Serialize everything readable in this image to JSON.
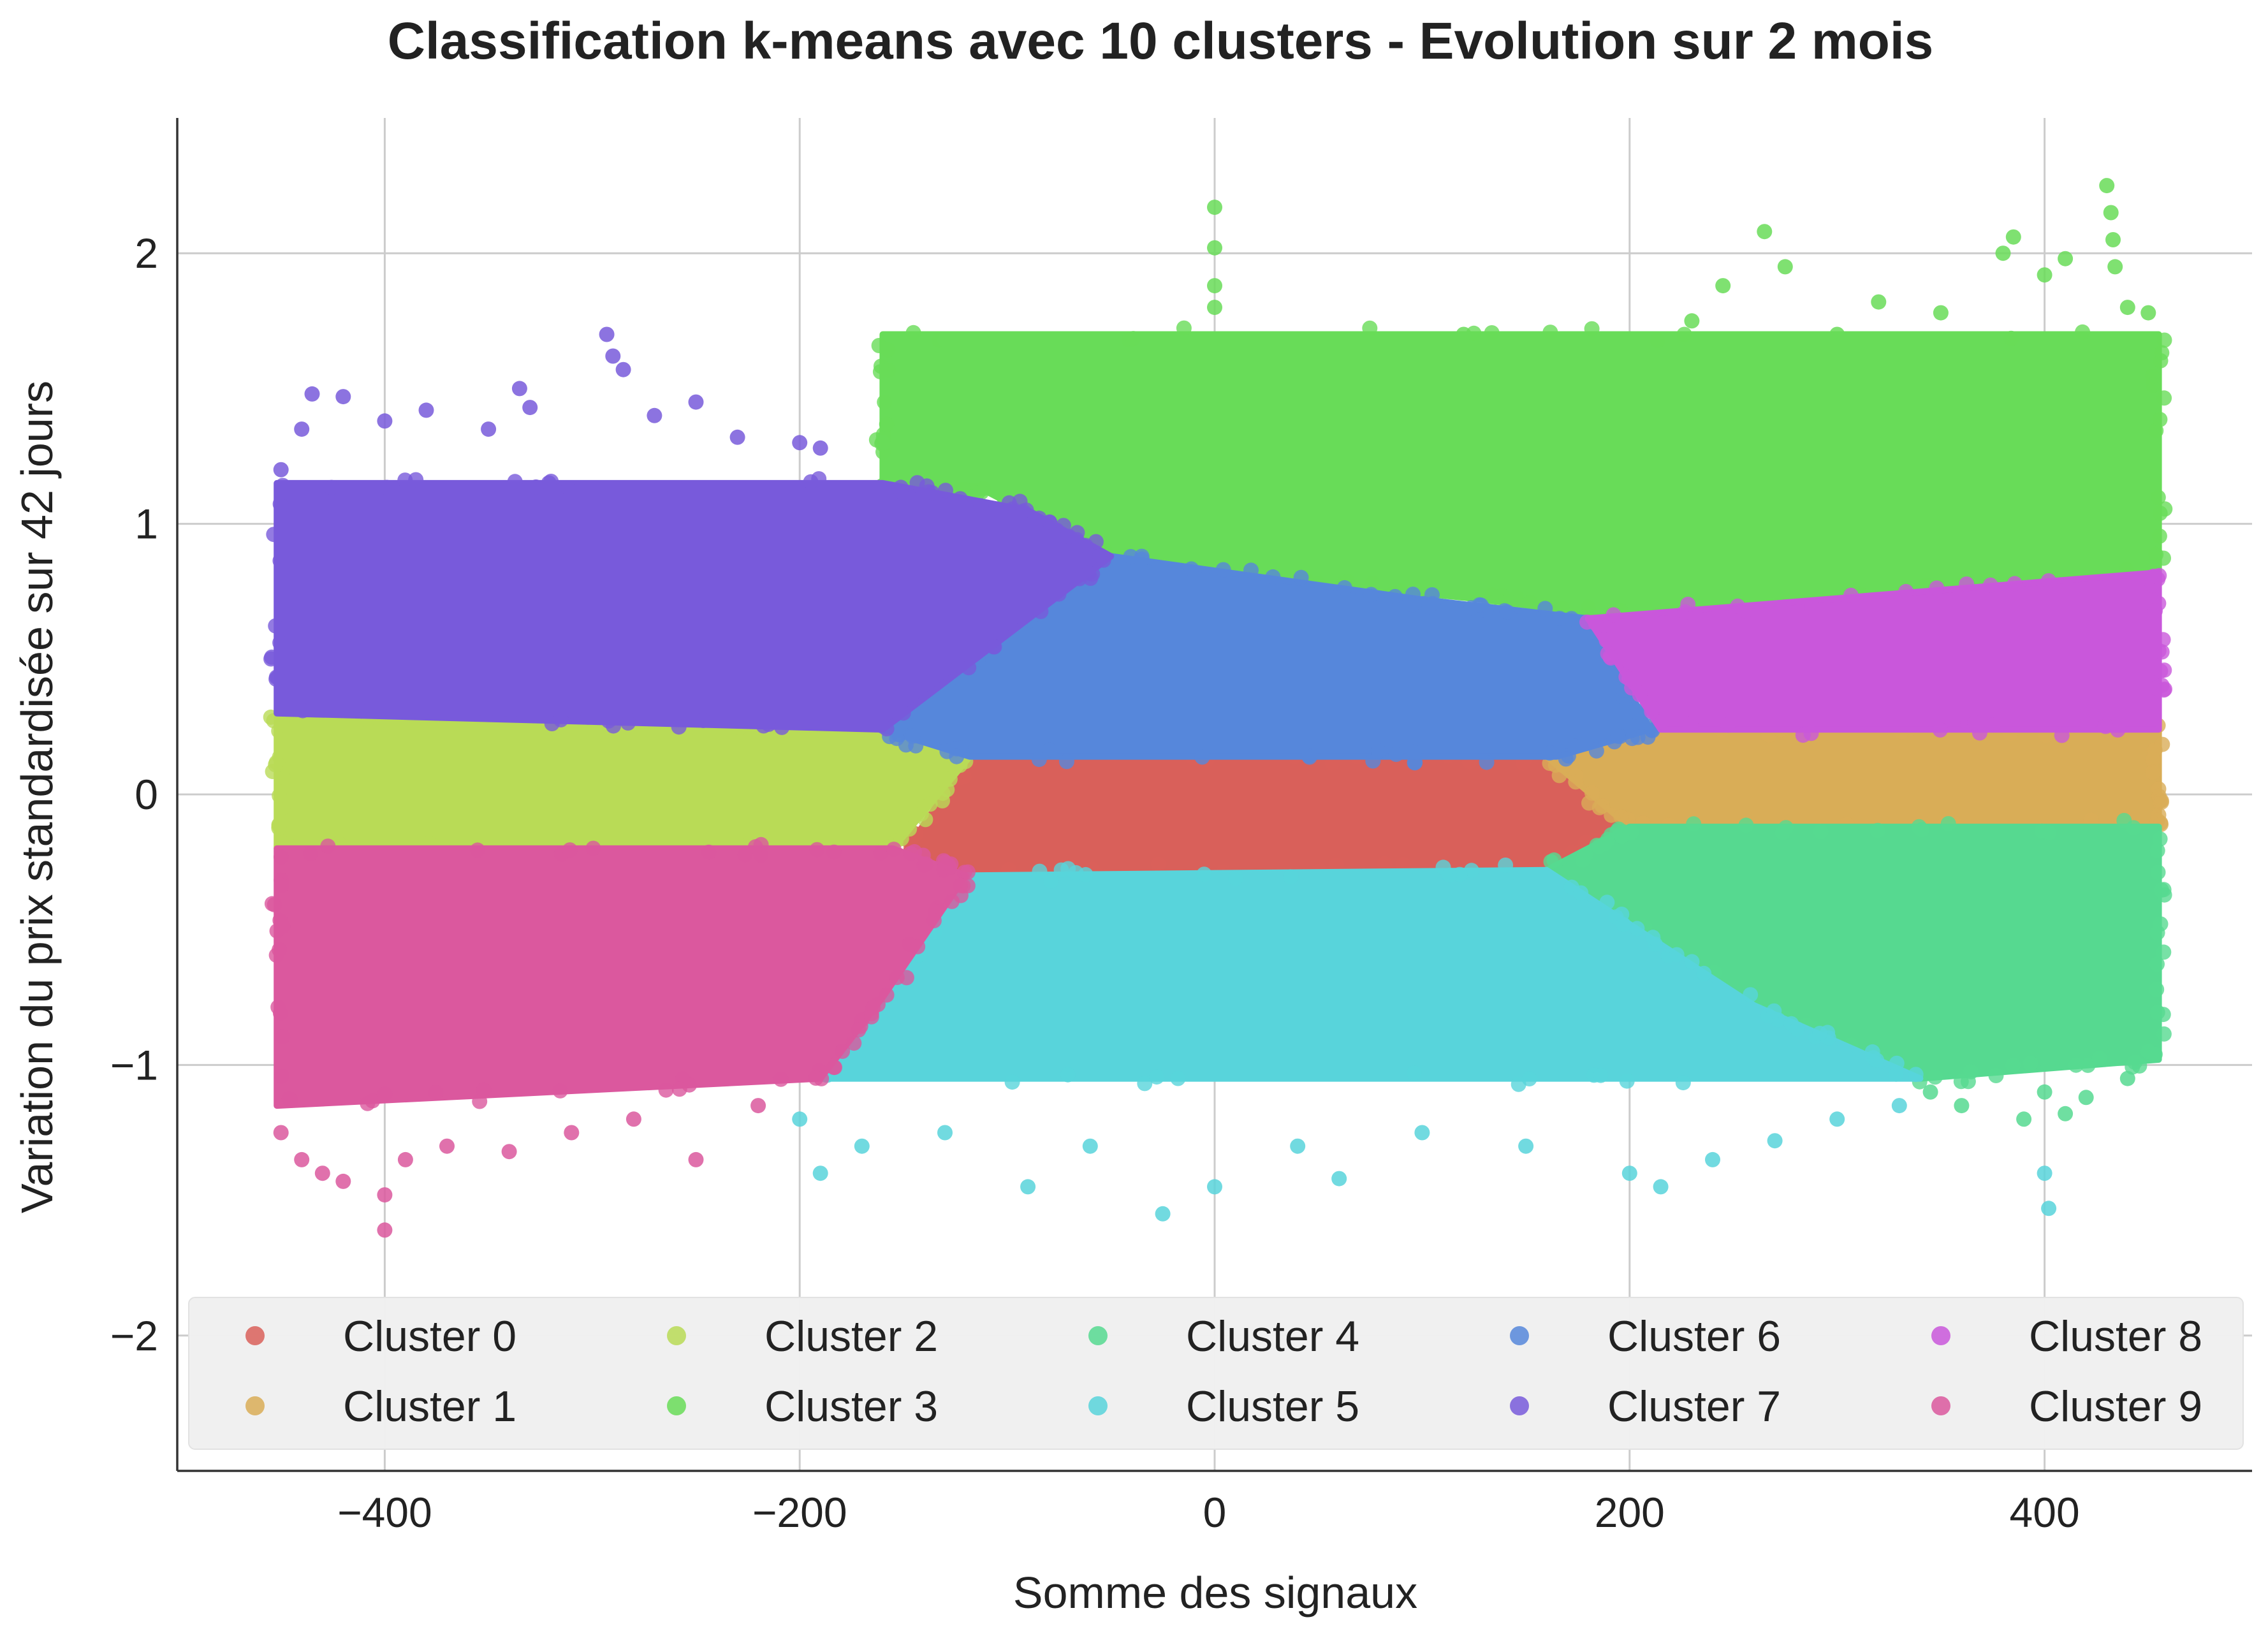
{
  "chart_data": {
    "type": "scatter",
    "title": "Classification k-means avec 10 clusters - Evolution sur 2 mois",
    "xlabel": "Somme des signaux",
    "ylabel": "Variation du prix standardisée sur 42 jours",
    "xlim": [
      -500,
      500
    ],
    "ylim": [
      -2.5,
      2.5
    ],
    "xticks": [
      -400,
      -200,
      0,
      200,
      400
    ],
    "xtick_labels": [
      "−400",
      "−200",
      "0",
      "200",
      "400"
    ],
    "yticks": [
      -2,
      -1,
      0,
      1,
      2
    ],
    "ytick_labels": [
      "−2",
      "−1",
      "0",
      "1",
      "2"
    ],
    "grid": true,
    "legend_position": "bottom",
    "legend_columns": 5,
    "series": [
      {
        "name": "Cluster 0",
        "color": "#d9605a",
        "region": [
          [
            -155,
            -0.28
          ],
          [
            -118,
            0.14
          ],
          [
            165,
            0.14
          ],
          [
            200,
            -0.12
          ],
          [
            160,
            -0.28
          ]
        ]
      },
      {
        "name": "Cluster 1",
        "color": "#d9ad57",
        "region": [
          [
            160,
            0.14
          ],
          [
            215,
            0.24
          ],
          [
            455,
            0.24
          ],
          [
            455,
            -0.12
          ],
          [
            200,
            -0.12
          ]
        ]
      },
      {
        "name": "Cluster 2",
        "color": "#b9db56",
        "region": [
          [
            -452,
            0.3
          ],
          [
            -160,
            0.24
          ],
          [
            -118,
            0.14
          ],
          [
            -155,
            -0.2
          ],
          [
            -452,
            -0.2
          ]
        ]
      },
      {
        "name": "Cluster 3",
        "color": "#68dc58",
        "region": [
          [
            -160,
            1.05
          ],
          [
            -110,
            1.12
          ],
          [
            -60,
            0.92
          ],
          [
            -30,
            0.84
          ],
          [
            130,
            0.72
          ],
          [
            190,
            0.66
          ],
          [
            455,
            0.82
          ],
          [
            455,
            1.7
          ],
          [
            -160,
            1.7
          ]
        ],
        "outliers": [
          [
            -160,
            1.3
          ],
          [
            -140,
            1.5
          ],
          [
            -130,
            1.68
          ],
          [
            -100,
            1.42
          ],
          [
            -70,
            1.5
          ],
          [
            -40,
            1.45
          ],
          [
            0,
            2.17
          ],
          [
            0,
            2.02
          ],
          [
            0,
            1.88
          ],
          [
            0,
            1.8
          ],
          [
            -20,
            1.62
          ],
          [
            60,
            1.5
          ],
          [
            100,
            1.6
          ],
          [
            120,
            1.7
          ],
          [
            150,
            1.62
          ],
          [
            190,
            1.55
          ],
          [
            230,
            1.75
          ],
          [
            245,
            1.88
          ],
          [
            265,
            2.08
          ],
          [
            275,
            1.95
          ],
          [
            300,
            1.7
          ],
          [
            320,
            1.82
          ],
          [
            350,
            1.78
          ],
          [
            380,
            2.0
          ],
          [
            385,
            2.06
          ],
          [
            400,
            1.92
          ],
          [
            410,
            1.98
          ],
          [
            430,
            2.25
          ],
          [
            432,
            2.15
          ],
          [
            433,
            2.05
          ],
          [
            434,
            1.95
          ],
          [
            440,
            1.8
          ],
          [
            450,
            1.78
          ]
        ]
      },
      {
        "name": "Cluster 4",
        "color": "#56d990",
        "region": [
          [
            160,
            -0.28
          ],
          [
            200,
            -0.12
          ],
          [
            455,
            -0.12
          ],
          [
            455,
            -0.98
          ],
          [
            340,
            -1.05
          ],
          [
            260,
            -0.78
          ]
        ],
        "outliers": [
          [
            345,
            -1.1
          ],
          [
            360,
            -1.15
          ],
          [
            390,
            -1.2
          ],
          [
            400,
            -1.1
          ],
          [
            410,
            -1.18
          ],
          [
            420,
            -1.12
          ],
          [
            440,
            -1.05
          ],
          [
            450,
            -0.95
          ]
        ]
      },
      {
        "name": "Cluster 5",
        "color": "#58d4db",
        "region": [
          [
            -120,
            -0.3
          ],
          [
            160,
            -0.28
          ],
          [
            260,
            -0.78
          ],
          [
            340,
            -1.05
          ],
          [
            -190,
            -1.05
          ],
          [
            -160,
            -0.75
          ]
        ],
        "outliers": [
          [
            -200,
            -1.2
          ],
          [
            -190,
            -1.4
          ],
          [
            -170,
            -1.3
          ],
          [
            -130,
            -1.25
          ],
          [
            -90,
            -1.45
          ],
          [
            -60,
            -1.3
          ],
          [
            -25,
            -1.55
          ],
          [
            0,
            -1.45
          ],
          [
            40,
            -1.3
          ],
          [
            60,
            -1.42
          ],
          [
            100,
            -1.25
          ],
          [
            150,
            -1.3
          ],
          [
            200,
            -1.4
          ],
          [
            215,
            -1.45
          ],
          [
            240,
            -1.35
          ],
          [
            270,
            -1.28
          ],
          [
            300,
            -1.2
          ],
          [
            330,
            -1.15
          ],
          [
            402,
            -1.53
          ],
          [
            400,
            -1.4
          ]
        ]
      },
      {
        "name": "Cluster 6",
        "color": "#5687db",
        "region": [
          [
            -160,
            0.24
          ],
          [
            -118,
            0.14
          ],
          [
            165,
            0.14
          ],
          [
            210,
            0.24
          ],
          [
            180,
            0.65
          ],
          [
            100,
            0.72
          ],
          [
            -50,
            0.88
          ]
        ]
      },
      {
        "name": "Cluster 7",
        "color": "#785adb",
        "region": [
          [
            -452,
            0.3
          ],
          [
            -160,
            0.24
          ],
          [
            -50,
            0.88
          ],
          [
            -90,
            1.05
          ],
          [
            -160,
            1.15
          ],
          [
            -452,
            1.15
          ]
        ],
        "outliers": [
          [
            -450,
            1.2
          ],
          [
            -440,
            1.35
          ],
          [
            -435,
            1.48
          ],
          [
            -420,
            1.47
          ],
          [
            -400,
            1.38
          ],
          [
            -380,
            1.42
          ],
          [
            -350,
            1.35
          ],
          [
            -335,
            1.5
          ],
          [
            -330,
            1.43
          ],
          [
            -293,
            1.7
          ],
          [
            -290,
            1.62
          ],
          [
            -285,
            1.57
          ],
          [
            -270,
            1.4
          ],
          [
            -250,
            1.45
          ],
          [
            -230,
            1.32
          ],
          [
            -200,
            1.3
          ],
          [
            -190,
            1.28
          ]
        ]
      },
      {
        "name": "Cluster 8",
        "color": "#c957db",
        "region": [
          [
            180,
            0.65
          ],
          [
            455,
            0.82
          ],
          [
            455,
            0.24
          ],
          [
            215,
            0.24
          ]
        ]
      },
      {
        "name": "Cluster 9",
        "color": "#db589e",
        "region": [
          [
            -452,
            -0.2
          ],
          [
            -155,
            -0.2
          ],
          [
            -120,
            -0.3
          ],
          [
            -160,
            -0.75
          ],
          [
            -190,
            -1.05
          ],
          [
            -452,
            -1.15
          ]
        ],
        "outliers": [
          [
            -450,
            -1.25
          ],
          [
            -440,
            -1.35
          ],
          [
            -430,
            -1.4
          ],
          [
            -420,
            -1.43
          ],
          [
            -400,
            -1.48
          ],
          [
            -400,
            -1.61
          ],
          [
            -390,
            -1.35
          ],
          [
            -370,
            -1.3
          ],
          [
            -340,
            -1.32
          ],
          [
            -310,
            -1.25
          ],
          [
            -280,
            -1.2
          ],
          [
            -250,
            -1.35
          ],
          [
            -220,
            -1.15
          ]
        ]
      }
    ]
  }
}
